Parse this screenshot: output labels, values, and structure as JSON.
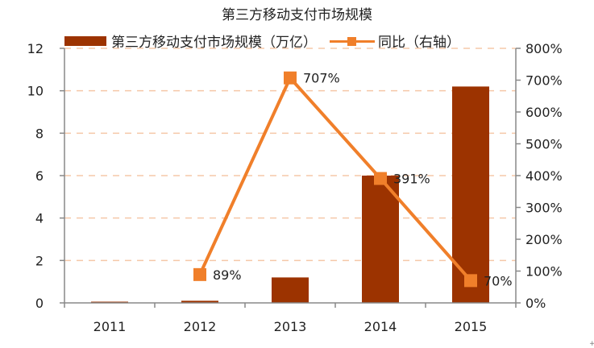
{
  "chart_data": {
    "type": "bar+line",
    "title": "第三方移动支付市场规模",
    "categories": [
      "2011",
      "2012",
      "2013",
      "2014",
      "2015"
    ],
    "series": [
      {
        "name": "第三方移动支付市场规模（万亿）",
        "type": "bar",
        "axis": "left",
        "color": "#9C3300",
        "values": [
          0.02,
          0.1,
          1.2,
          6.0,
          10.2
        ]
      },
      {
        "name": "同比（右轴）",
        "type": "line",
        "axis": "right",
        "color": "#F07F2A",
        "values": [
          null,
          89,
          707,
          391,
          70
        ],
        "labels": [
          "",
          "89%",
          "707%",
          "391%",
          "70%"
        ]
      }
    ],
    "left_axis": {
      "ylim": [
        0,
        12
      ],
      "ticks": [
        "0",
        "2",
        "4",
        "6",
        "8",
        "10",
        "12"
      ]
    },
    "right_axis": {
      "ylim": [
        0,
        800
      ],
      "ticks": [
        "0%",
        "100%",
        "200%",
        "300%",
        "400%",
        "500%",
        "600%",
        "700%",
        "800%"
      ]
    },
    "grid": {
      "horizontal": true,
      "style": "dashed",
      "color": "#F5C8A8"
    },
    "legend_position": "top"
  },
  "legend": {
    "bar_label": "第三方移动支付市场规模（万亿）",
    "line_label": "同比（右轴）"
  },
  "corner_mark": "+"
}
